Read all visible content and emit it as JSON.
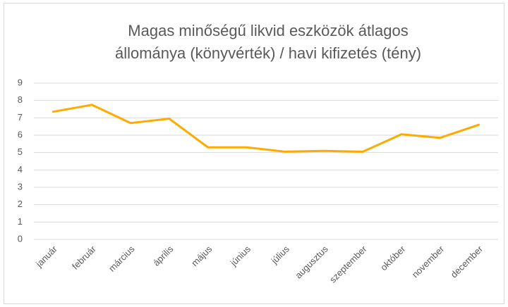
{
  "chart_data": {
    "type": "line",
    "title": [
      "Magas minőségű likvid eszközök átlagos",
      "állománya (könyvérték) / havi kifizetés (tény)"
    ],
    "categories": [
      "január",
      "február",
      "március",
      "április",
      "május",
      "június",
      "július",
      "augusztus",
      "szeptember",
      "október",
      "november",
      "december"
    ],
    "values": [
      7.35,
      7.75,
      6.7,
      6.95,
      5.3,
      5.3,
      5.05,
      5.1,
      5.05,
      6.05,
      5.85,
      6.6
    ],
    "color": "#ffaa00",
    "ylim": [
      0,
      9
    ],
    "yticks": [
      0,
      1,
      2,
      3,
      4,
      5,
      6,
      7,
      8,
      9
    ],
    "grid": true
  }
}
